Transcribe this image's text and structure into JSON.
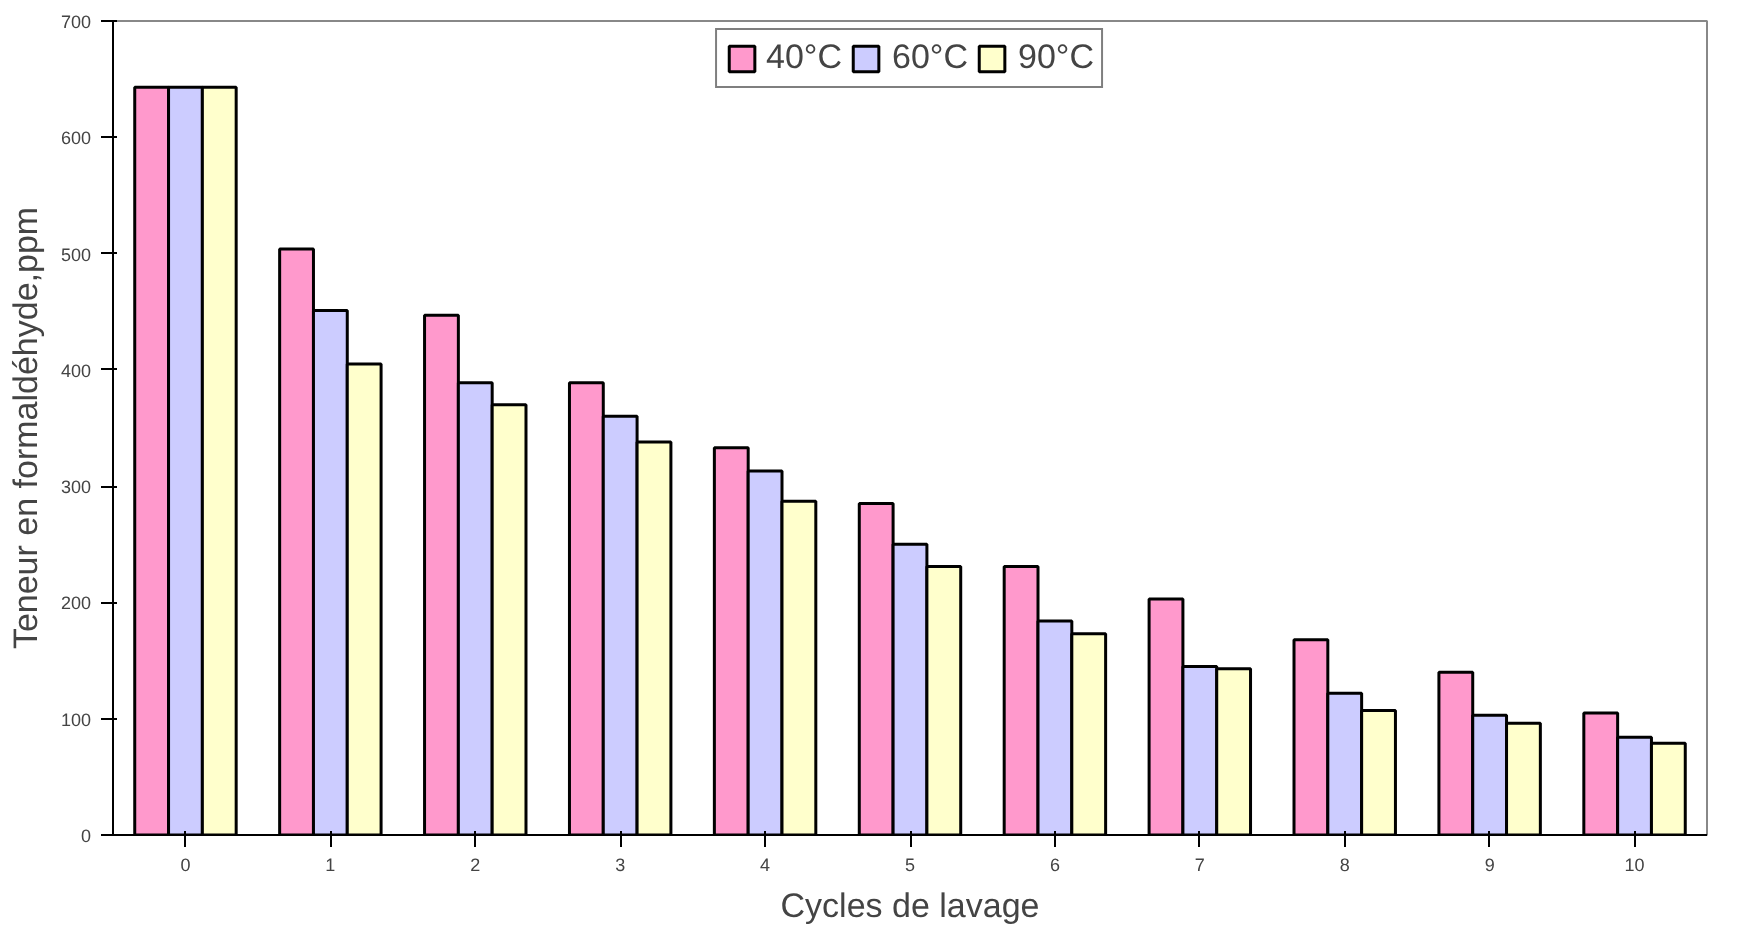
{
  "chart_data": {
    "type": "bar",
    "xlabel": "Cycles de lavage",
    "ylabel": "Teneur en formaldéhyde,ppm",
    "categories": [
      "0",
      "1",
      "2",
      "3",
      "4",
      "5",
      "6",
      "7",
      "8",
      "9",
      "10"
    ],
    "series": [
      {
        "name": "40°C",
        "color": "#ff99cc",
        "values": [
          643,
          504,
          447,
          389,
          333,
          285,
          231,
          203,
          168,
          140,
          105
        ]
      },
      {
        "name": "60°C",
        "color": "#ccccff",
        "values": [
          643,
          451,
          389,
          360,
          313,
          250,
          184,
          145,
          122,
          103,
          84
        ]
      },
      {
        "name": "90°C",
        "color": "#ffffcc",
        "values": [
          643,
          405,
          370,
          338,
          287,
          231,
          173,
          143,
          107,
          96,
          79
        ]
      }
    ],
    "ylim": [
      0,
      700
    ],
    "yticks": [
      0,
      100,
      200,
      300,
      400,
      500,
      600,
      700
    ],
    "grid": false,
    "legend": "top"
  }
}
